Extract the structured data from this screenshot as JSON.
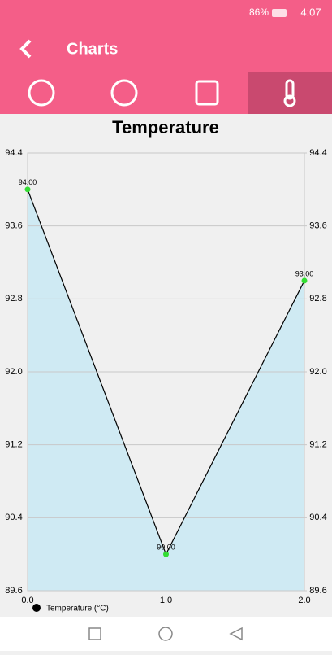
{
  "status_bar": {
    "battery": "86%",
    "time": "4:07"
  },
  "app_bar": {
    "title": "Charts"
  },
  "chart_data": {
    "type": "line",
    "title": "Temperature",
    "x": [
      0,
      1,
      2
    ],
    "xlim": [
      0,
      2
    ],
    "xticks": [
      {
        "value": 0,
        "label": "0.0"
      },
      {
        "value": 1,
        "label": "1.0"
      },
      {
        "value": 2,
        "label": "2.0"
      }
    ],
    "ylim": [
      89.6,
      94.4
    ],
    "yticks": [
      89.6,
      90.4,
      91.2,
      {
        "value": 92,
        "label": "92.0"
      },
      92.8,
      93.6,
      94.4
    ],
    "y2lim": [
      89.6,
      94.4
    ],
    "y2ticks": [
      89.6,
      90.4,
      91.2,
      {
        "value": 92,
        "label": "92.0"
      },
      92.8,
      93.6,
      94.4
    ],
    "grid": true,
    "legend": "bottom-left",
    "series": [
      {
        "name": "Temperature (°C)",
        "color": "#000000",
        "fill": "#cfeaf3",
        "marker_color": "#33dd33",
        "values": [
          94,
          90,
          93
        ],
        "value_labels": [
          "94.00",
          "90.00",
          "93.00"
        ]
      }
    ]
  }
}
